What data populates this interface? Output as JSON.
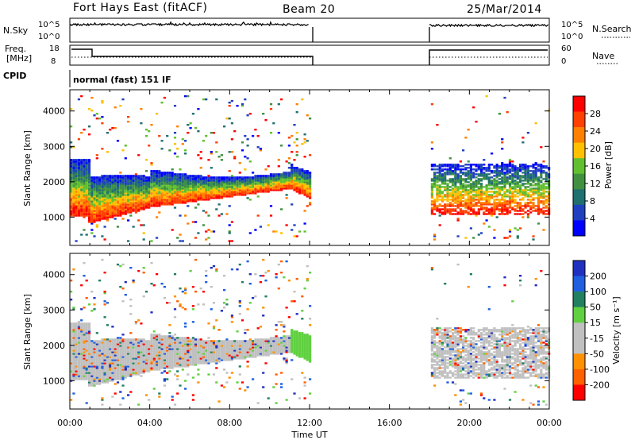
{
  "header": {
    "station": "Fort Hays East (fitACF)",
    "beam": "Beam 20",
    "date": "25/Mar/2014"
  },
  "panels": {
    "nsky": {
      "label": "N.Sky",
      "ticks": [
        "10^5",
        "10^0"
      ],
      "right_label": "N.Search",
      "right_ticks": [
        "10^5",
        "10^0"
      ]
    },
    "freq": {
      "label_line1": "Freq.",
      "label_line2": "[MHz]",
      "ticks": [
        "18",
        "8"
      ],
      "right_label": "Nave",
      "right_ticks": [
        "60",
        "0"
      ]
    },
    "cpid": {
      "label": "CPID",
      "text": "normal (fast) 151 IF"
    }
  },
  "colors": {
    "power": [
      "#0000ff",
      "#2040c0",
      "#207070",
      "#409040",
      "#60c030",
      "#ffc000",
      "#ff8000",
      "#ff4000",
      "#ff0000"
    ],
    "velocity": [
      "#2030c0",
      "#2060e0",
      "#208060",
      "#60d040",
      "#c0c0c0",
      "#c0c0c0",
      "#ff9000",
      "#ff6000",
      "#ff0000"
    ]
  },
  "chart_data": [
    {
      "type": "heatmap",
      "title": "Power",
      "xlabel": "Time UT",
      "ylabel": "Slant Range [km]",
      "x_ticks": [
        "00:00",
        "04:00",
        "08:00",
        "12:00",
        "16:00",
        "20:00",
        "00:00"
      ],
      "y_ticks": [
        1000,
        2000,
        3000,
        4000
      ],
      "xlim_hours": [
        0,
        24
      ],
      "ylim_km": [
        200,
        4600
      ],
      "colorbar": {
        "label": "Power [dB]",
        "ticks": [
          4,
          8,
          12,
          16,
          20,
          24,
          28
        ]
      },
      "data_gaps_ut": [
        [
          12,
          18
        ]
      ]
    },
    {
      "type": "heatmap",
      "title": "Velocity",
      "xlabel": "Time UT",
      "ylabel": "Slant Range [km]",
      "x_ticks": [
        "00:00",
        "04:00",
        "08:00",
        "12:00",
        "16:00",
        "20:00",
        "00:00"
      ],
      "y_ticks": [
        1000,
        2000,
        3000,
        4000
      ],
      "xlim_hours": [
        0,
        24
      ],
      "ylim_km": [
        200,
        4600
      ],
      "colorbar": {
        "label": "Velocity [m s⁻¹]",
        "ticks": [
          200,
          100,
          50,
          15,
          -15,
          -50,
          -100,
          -200
        ]
      },
      "data_gaps_ut": [
        [
          12,
          18
        ]
      ]
    }
  ],
  "axis": {
    "xlabel": "Time UT"
  }
}
